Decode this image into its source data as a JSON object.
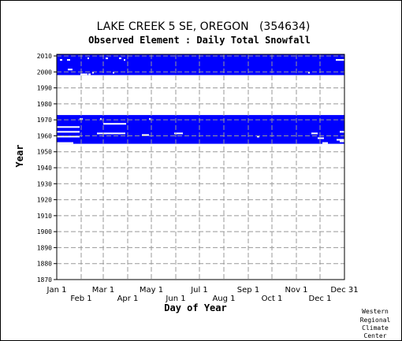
{
  "chart_data": {
    "type": "heatmap",
    "title": "LAKE CREEK 5 SE, OREGON   (354634)",
    "subtitle": "Observed Element : Daily Total Snowfall",
    "xlabel": "Day of Year",
    "ylabel": "Year",
    "xlim": [
      1,
      366
    ],
    "ylim": [
      1870,
      2011
    ],
    "y_ticks": [
      1870,
      1880,
      1890,
      1900,
      1910,
      1920,
      1930,
      1940,
      1950,
      1960,
      1970,
      1980,
      1990,
      2000,
      2010
    ],
    "x_ticks_top": [
      {
        "label": "Jan 1",
        "day": 1
      },
      {
        "label": "Mar 1",
        "day": 60
      },
      {
        "label": "May 1",
        "day": 121
      },
      {
        "label": "Jul 1",
        "day": 182
      },
      {
        "label": "Sep 1",
        "day": 244
      },
      {
        "label": "Nov 1",
        "day": 305
      },
      {
        "label": "Dec 31",
        "day": 366
      }
    ],
    "x_ticks_bottom": [
      {
        "label": "Feb 1",
        "day": 32
      },
      {
        "label": "Apr 1",
        "day": 91
      },
      {
        "label": "Jun 1",
        "day": 152
      },
      {
        "label": "Aug 1",
        "day": 213
      },
      {
        "label": "Oct 1",
        "day": 274
      },
      {
        "label": "Dec 1",
        "day": 335
      }
    ],
    "grid": true,
    "color": "#0000ff",
    "data_present_years": [
      [
        1955,
        1972
      ],
      [
        1998,
        2010
      ]
    ],
    "missing_segments": [
      {
        "year": 1955,
        "day_start": 1,
        "day_end": 22
      },
      {
        "year": 1955,
        "day_start": 338,
        "day_end": 345
      },
      {
        "year": 1956,
        "day_start": 360,
        "day_end": 366
      },
      {
        "year": 1957,
        "day_start": 356,
        "day_end": 366
      },
      {
        "year": 1958,
        "day_start": 332,
        "day_end": 340
      },
      {
        "year": 1959,
        "day_start": 1,
        "day_end": 30
      },
      {
        "year": 1959,
        "day_start": 255,
        "day_end": 258
      },
      {
        "year": 1960,
        "day_start": 109,
        "day_end": 118
      },
      {
        "year": 1961,
        "day_start": 52,
        "day_end": 88
      },
      {
        "year": 1961,
        "day_start": 150,
        "day_end": 161
      },
      {
        "year": 1961,
        "day_start": 324,
        "day_end": 332
      },
      {
        "year": 1962,
        "day_start": 1,
        "day_end": 30
      },
      {
        "year": 1962,
        "day_start": 360,
        "day_end": 366
      },
      {
        "year": 1965,
        "day_start": 1,
        "day_end": 30
      },
      {
        "year": 1967,
        "day_start": 60,
        "day_end": 89
      },
      {
        "year": 1970,
        "day_start": 30,
        "day_end": 34
      },
      {
        "year": 1970,
        "day_start": 56,
        "day_end": 58
      },
      {
        "year": 1970,
        "day_start": 118,
        "day_end": 120
      },
      {
        "year": 1998,
        "day_start": 31,
        "day_end": 40
      },
      {
        "year": 1998,
        "day_start": 41,
        "day_end": 44
      },
      {
        "year": 1999,
        "day_start": 46,
        "day_end": 48
      },
      {
        "year": 1999,
        "day_start": 72,
        "day_end": 74
      },
      {
        "year": 1999,
        "day_start": 320,
        "day_end": 322
      },
      {
        "year": 2001,
        "day_start": 15,
        "day_end": 21
      },
      {
        "year": 2007,
        "day_start": 5,
        "day_end": 8
      },
      {
        "year": 2007,
        "day_start": 14,
        "day_end": 18
      },
      {
        "year": 2007,
        "day_start": 86,
        "day_end": 88
      },
      {
        "year": 2007,
        "day_start": 355,
        "day_end": 366
      },
      {
        "year": 2008,
        "day_start": 40,
        "day_end": 42
      },
      {
        "year": 2008,
        "day_start": 63,
        "day_end": 66
      },
      {
        "year": 2008,
        "day_start": 80,
        "day_end": 83
      }
    ]
  },
  "credit_lines": [
    "Western",
    "Regional",
    "Climate",
    "Center"
  ]
}
